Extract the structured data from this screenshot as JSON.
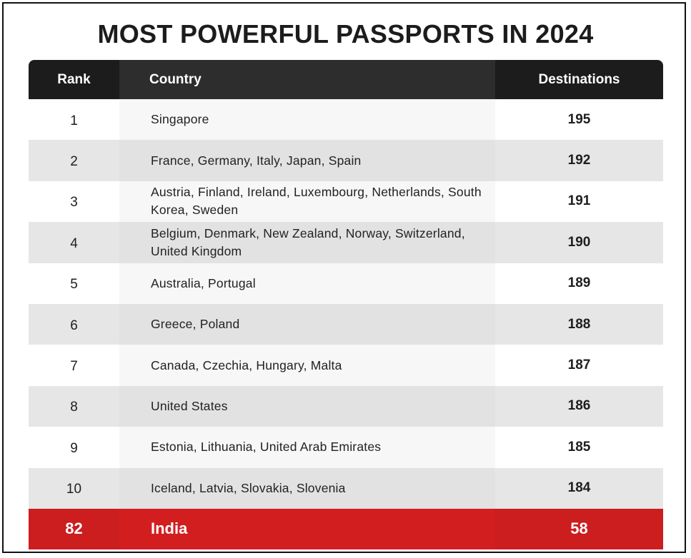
{
  "chart_data": {
    "type": "table",
    "title": "MOST POWERFUL PASSPORTS IN 2024",
    "columns": [
      "Rank",
      "Country",
      "Destinations"
    ],
    "rows": [
      {
        "rank": "1",
        "country": "Singapore",
        "destinations": "195"
      },
      {
        "rank": "2",
        "country": "France, Germany, Italy, Japan, Spain",
        "destinations": "192"
      },
      {
        "rank": "3",
        "country": "Austria, Finland, Ireland, Luxembourg, Netherlands, South Korea, Sweden",
        "destinations": "191"
      },
      {
        "rank": "4",
        "country": "Belgium, Denmark, New Zealand, Norway, Switzerland, United Kingdom",
        "destinations": "190"
      },
      {
        "rank": "5",
        "country": "Australia, Portugal",
        "destinations": "189"
      },
      {
        "rank": "6",
        "country": "Greece, Poland",
        "destinations": "188"
      },
      {
        "rank": "7",
        "country": "Canada, Czechia, Hungary, Malta",
        "destinations": "187"
      },
      {
        "rank": "8",
        "country": "United States",
        "destinations": "186"
      },
      {
        "rank": "9",
        "country": "Estonia, Lithuania, United Arab Emirates",
        "destinations": "185"
      },
      {
        "rank": "10",
        "country": "Iceland, Latvia, Slovakia, Slovenia",
        "destinations": "184"
      }
    ],
    "highlight_row": {
      "rank": "82",
      "country": "India",
      "destinations": "58"
    }
  },
  "colors": {
    "header_background": "#1c1c1c",
    "highlight_background": "#cc1d1f",
    "stripe_background": "#e6e6e6"
  }
}
